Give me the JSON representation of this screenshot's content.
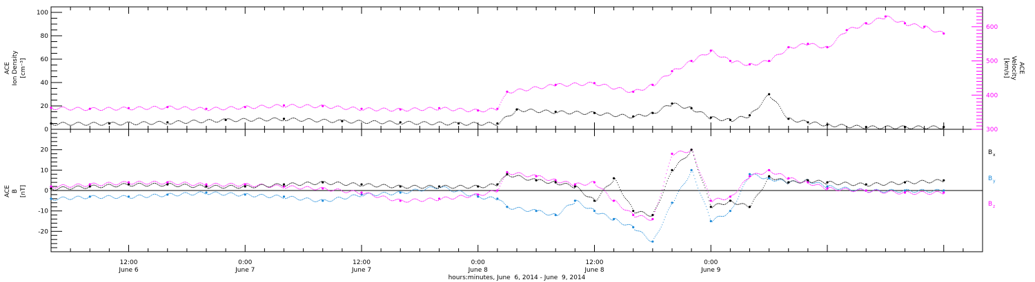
{
  "chart_data": [
    {
      "type": "scatter",
      "panel": "top",
      "ylabel_left": [
        "ACE",
        "Ion Density",
        "[cm⁻³]"
      ],
      "ylabel_right": [
        "ACE",
        "Velocity",
        "[km/s]"
      ],
      "ylim_left": [
        0,
        100
      ],
      "ylim_right": [
        300,
        650
      ],
      "yticks_left": [
        "0",
        "20",
        "40",
        "60",
        "80",
        "100"
      ],
      "yticks_right": [
        "300",
        "400",
        "500",
        "600"
      ],
      "series": [
        {
          "axis": "left",
          "color": "#000000",
          "x": [
            0,
            6,
            12,
            18,
            24,
            30,
            36,
            42,
            46,
            48,
            52,
            56,
            60,
            62,
            64,
            66,
            68,
            70,
            72,
            74,
            76,
            78,
            80,
            84,
            88,
            92
          ],
          "y": [
            5,
            5,
            6,
            8,
            9,
            7,
            6,
            5,
            5,
            17,
            15,
            14,
            11,
            14,
            22,
            18,
            10,
            8,
            12,
            30,
            9,
            6,
            4,
            2,
            2,
            2
          ]
        },
        {
          "axis": "right",
          "color": "#ff00ff",
          "x": [
            0,
            4,
            8,
            12,
            16,
            20,
            24,
            28,
            32,
            36,
            40,
            44,
            46,
            47,
            52,
            56,
            60,
            62,
            64,
            66,
            68,
            70,
            72,
            74,
            76,
            78,
            80,
            82,
            84,
            86,
            88,
            90,
            92
          ],
          "y": [
            363,
            360,
            362,
            365,
            360,
            365,
            370,
            368,
            360,
            358,
            362,
            355,
            360,
            410,
            430,
            435,
            410,
            430,
            470,
            500,
            530,
            500,
            490,
            500,
            540,
            550,
            540,
            590,
            610,
            630,
            610,
            600,
            580
          ]
        }
      ]
    },
    {
      "type": "scatter",
      "panel": "bottom",
      "ylabel": [
        "ACE",
        "B",
        "[nT]"
      ],
      "ylim": [
        -30,
        30
      ],
      "yticks": [
        "-20",
        "-10",
        "0",
        "10",
        "20"
      ],
      "xlabel": "hours:minutes, June  6, 2014 - June  9, 2014",
      "xlim": [
        0,
        96
      ],
      "xticks": [
        {
          "x": 8,
          "time": "12:00",
          "day": "June 6"
        },
        {
          "x": 20,
          "time": "0:00",
          "day": "June 7"
        },
        {
          "x": 32,
          "time": "12:00",
          "day": "June 7"
        },
        {
          "x": 44,
          "time": "0:00",
          "day": "June 8"
        },
        {
          "x": 56,
          "time": "12:00",
          "day": "June 8"
        },
        {
          "x": 68,
          "time": "0:00",
          "day": "June 9"
        }
      ],
      "legend": [
        {
          "label": "B",
          "sub": "x",
          "color": "#000000"
        },
        {
          "label": "B",
          "sub": "y",
          "color": "#1a88d8"
        },
        {
          "label": "B",
          "sub": "z",
          "color": "#ff00ff"
        }
      ],
      "series": [
        {
          "name": "Bx",
          "color": "#000000",
          "x": [
            0,
            4,
            8,
            12,
            16,
            20,
            24,
            28,
            32,
            36,
            40,
            44,
            46,
            47,
            50,
            52,
            54,
            56,
            58,
            60,
            62,
            64,
            66,
            68,
            70,
            72,
            74,
            76,
            78,
            80,
            84,
            88,
            92
          ],
          "y": [
            1,
            2,
            3,
            3,
            2,
            2,
            3,
            4,
            3,
            2,
            2,
            2,
            3,
            8,
            5,
            4,
            2,
            -5,
            6,
            -10,
            -12,
            10,
            20,
            -8,
            -5,
            -8,
            7,
            4,
            5,
            4,
            3,
            4,
            5
          ]
        },
        {
          "name": "By",
          "color": "#1a88d8",
          "x": [
            0,
            4,
            8,
            12,
            16,
            20,
            24,
            28,
            32,
            36,
            40,
            44,
            46,
            47,
            50,
            52,
            54,
            56,
            58,
            60,
            62,
            64,
            66,
            68,
            70,
            72,
            74,
            76,
            78,
            80,
            84,
            88,
            92
          ],
          "y": [
            -4,
            -3,
            -3,
            -2,
            -1,
            -2,
            -3,
            -5,
            -2,
            -1,
            2,
            -3,
            -4,
            -8,
            -10,
            -12,
            -5,
            -10,
            -14,
            -18,
            -25,
            -6,
            10,
            -15,
            -10,
            8,
            6,
            4,
            5,
            2,
            0,
            0,
            0
          ]
        },
        {
          "name": "Bz",
          "color": "#ff00ff",
          "x": [
            0,
            4,
            8,
            12,
            16,
            20,
            24,
            28,
            32,
            36,
            40,
            44,
            46,
            47,
            50,
            52,
            54,
            56,
            58,
            60,
            62,
            64,
            66,
            68,
            70,
            72,
            74,
            76,
            78,
            80,
            84,
            88,
            92
          ],
          "y": [
            2,
            3,
            4,
            4,
            3,
            3,
            2,
            1,
            -1,
            -5,
            -4,
            -2,
            0,
            9,
            7,
            5,
            3,
            4,
            -5,
            -12,
            -14,
            18,
            20,
            -5,
            -3,
            7,
            10,
            6,
            4,
            1,
            0,
            -1,
            -1
          ]
        }
      ]
    }
  ]
}
